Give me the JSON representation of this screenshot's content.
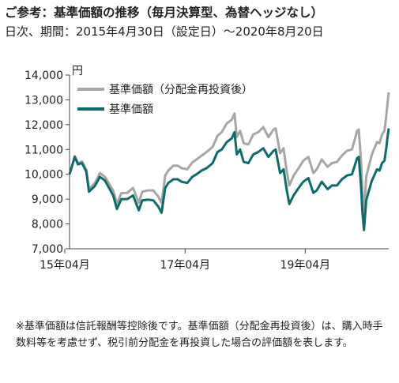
{
  "header": {
    "title": "ご参考：基準価額の推移（毎月決算型、為替ヘッジなし）",
    "period": "日次、期間：2015年4月30日（設定日）～2020年8月20日"
  },
  "footnote": "※基準価額は信託報酬等控除後です。基準価額（分配金再投資後）は、購入時手数料等を考慮せず、税引前分配金を再投資した場合の評価額を表します。",
  "colors": {
    "reinvested": "#a6a6a6",
    "nav": "#0f6b6b",
    "axis": "#444444"
  },
  "chart_data": {
    "type": "line",
    "ylabel": "円",
    "ylim": [
      7000,
      14000
    ],
    "yticks": [
      7000,
      8000,
      9000,
      10000,
      11000,
      12000,
      13000,
      14000
    ],
    "ytick_labels": [
      "7,000",
      "8,000",
      "9,000",
      "10,000",
      "11,000",
      "12,000",
      "13,000",
      "14,000"
    ],
    "xlim": [
      "2015-04-30",
      "2020-08-20"
    ],
    "xticks": [
      "2015-04-01",
      "2017-04-01",
      "2019-04-01"
    ],
    "xtick_labels": [
      "15年04月",
      "17年04月",
      "19年04月"
    ],
    "legend_position": "top-right",
    "series": [
      {
        "name": "基準価額（分配金再投資後）",
        "color": "#a6a6a6",
        "x": [
          "2015-04-30",
          "2015-06-01",
          "2015-06-20",
          "2015-07-15",
          "2015-08-10",
          "2015-08-26",
          "2015-10-01",
          "2015-11-01",
          "2015-12-01",
          "2016-01-20",
          "2016-02-12",
          "2016-03-10",
          "2016-04-15",
          "2016-05-20",
          "2016-06-24",
          "2016-07-15",
          "2016-08-20",
          "2016-09-20",
          "2016-10-20",
          "2016-11-09",
          "2016-12-01",
          "2016-12-20",
          "2017-01-20",
          "2017-02-15",
          "2017-03-10",
          "2017-04-14",
          "2017-05-15",
          "2017-06-10",
          "2017-07-10",
          "2017-08-10",
          "2017-09-15",
          "2017-10-15",
          "2017-11-10",
          "2017-12-10",
          "2018-01-10",
          "2018-01-26",
          "2018-02-09",
          "2018-03-01",
          "2018-03-23",
          "2018-04-20",
          "2018-05-20",
          "2018-06-20",
          "2018-07-20",
          "2018-08-20",
          "2018-09-20",
          "2018-10-03",
          "2018-10-30",
          "2018-11-20",
          "2018-12-10",
          "2018-12-25",
          "2019-01-20",
          "2019-02-20",
          "2019-03-20",
          "2019-04-20",
          "2019-05-20",
          "2019-06-10",
          "2019-07-10",
          "2019-08-15",
          "2019-09-10",
          "2019-10-10",
          "2019-11-10",
          "2019-12-10",
          "2020-01-10",
          "2020-02-10",
          "2020-02-20",
          "2020-03-05",
          "2020-03-12",
          "2020-03-23",
          "2020-04-05",
          "2020-04-20",
          "2020-05-10",
          "2020-06-10",
          "2020-06-25",
          "2020-07-10",
          "2020-07-25",
          "2020-08-05",
          "2020-08-12",
          "2020-08-20"
        ],
        "y": [
          10000,
          10730,
          10450,
          10520,
          10180,
          9400,
          9650,
          10050,
          9900,
          9350,
          8820,
          9240,
          9250,
          9450,
          8850,
          9300,
          9350,
          9350,
          9100,
          8850,
          9950,
          10150,
          10350,
          10350,
          10250,
          10200,
          10480,
          10600,
          10750,
          10900,
          11100,
          11550,
          11700,
          12050,
          12200,
          12450,
          11500,
          11750,
          11250,
          11200,
          11600,
          11700,
          11900,
          11500,
          11800,
          11850,
          10850,
          11050,
          10100,
          9550,
          9950,
          10250,
          10550,
          10700,
          10050,
          10200,
          10600,
          10300,
          10450,
          10500,
          10750,
          10950,
          11000,
          11750,
          11800,
          10500,
          9450,
          8350,
          9900,
          10300,
          10800,
          11300,
          11250,
          11600,
          11750,
          12350,
          12800,
          13300
        ]
      },
      {
        "name": "基準価額",
        "color": "#0f6b6b",
        "x": [
          "2015-04-30",
          "2015-06-01",
          "2015-06-20",
          "2015-07-15",
          "2015-08-10",
          "2015-08-26",
          "2015-10-01",
          "2015-11-01",
          "2015-12-01",
          "2016-01-20",
          "2016-02-12",
          "2016-03-10",
          "2016-04-15",
          "2016-05-20",
          "2016-06-24",
          "2016-07-15",
          "2016-08-20",
          "2016-09-20",
          "2016-10-20",
          "2016-11-09",
          "2016-12-01",
          "2016-12-20",
          "2017-01-20",
          "2017-02-15",
          "2017-03-10",
          "2017-04-14",
          "2017-05-15",
          "2017-06-10",
          "2017-07-10",
          "2017-08-10",
          "2017-09-15",
          "2017-10-15",
          "2017-11-10",
          "2017-12-10",
          "2018-01-10",
          "2018-01-26",
          "2018-02-09",
          "2018-03-01",
          "2018-03-23",
          "2018-04-20",
          "2018-05-20",
          "2018-06-20",
          "2018-07-20",
          "2018-08-20",
          "2018-09-20",
          "2018-10-03",
          "2018-10-30",
          "2018-11-20",
          "2018-12-10",
          "2018-12-25",
          "2019-01-20",
          "2019-02-20",
          "2019-03-20",
          "2019-04-20",
          "2019-05-20",
          "2019-06-10",
          "2019-07-10",
          "2019-08-15",
          "2019-09-10",
          "2019-10-10",
          "2019-11-10",
          "2019-12-10",
          "2020-01-10",
          "2020-02-10",
          "2020-02-20",
          "2020-03-05",
          "2020-03-12",
          "2020-03-23",
          "2020-04-05",
          "2020-04-20",
          "2020-05-10",
          "2020-06-10",
          "2020-06-25",
          "2020-07-10",
          "2020-07-25",
          "2020-08-05",
          "2020-08-12",
          "2020-08-20"
        ],
        "y": [
          10000,
          10700,
          10400,
          10450,
          10100,
          9300,
          9530,
          9900,
          9750,
          9150,
          8600,
          9000,
          9000,
          9150,
          8550,
          8950,
          8980,
          8950,
          8700,
          8450,
          9450,
          9650,
          9800,
          9800,
          9700,
          9650,
          9900,
          10000,
          10150,
          10250,
          10450,
          10900,
          11000,
          11300,
          11450,
          11700,
          10800,
          11000,
          10500,
          10450,
          10800,
          10900,
          11050,
          10700,
          10950,
          11000,
          10050,
          10200,
          9350,
          8800,
          9150,
          9450,
          9700,
          9850,
          9250,
          9350,
          9700,
          9400,
          9550,
          9550,
          9800,
          9950,
          10000,
          10650,
          10700,
          9500,
          8550,
          7750,
          8950,
          9300,
          9750,
          10200,
          10150,
          10450,
          10550,
          11050,
          11450,
          11850
        ]
      }
    ]
  }
}
